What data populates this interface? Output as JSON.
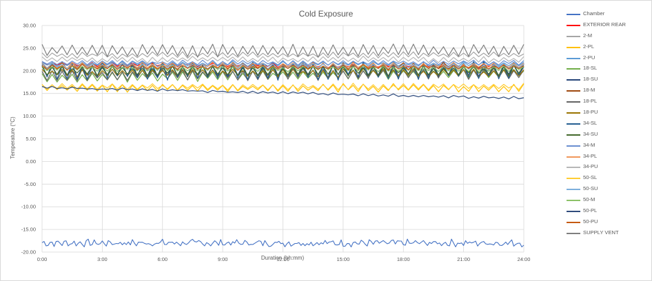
{
  "chart_data": {
    "type": "line",
    "title": "Cold Exposure",
    "xlabel": "Duration (hh:mm)",
    "ylabel": "Temperature (°C)",
    "xlim": [
      0,
      24
    ],
    "ylim": [
      -20,
      30
    ],
    "yticks": [
      "30.00",
      "25.00",
      "20.00",
      "15.00",
      "10.00",
      "5.00",
      "0.00",
      "-5.00",
      "-10.00",
      "-15.00",
      "-20.00"
    ],
    "xticks": [
      "0:00",
      "3:00",
      "6:00",
      "9:00",
      "12:00",
      "15:00",
      "18:00",
      "21:00",
      "24:00"
    ],
    "grid": true,
    "legend_position": "right",
    "series": [
      {
        "name": "Chamber",
        "color": "#4472C4",
        "base": -18.0,
        "amp": 0.6,
        "trend": 0.0
      },
      {
        "name": "EXTERIOR REAR",
        "color": "#FF0000",
        "base": 21.5,
        "amp": 0.4,
        "trend": -0.5
      },
      {
        "name": "2-M",
        "color": "#A5A5A5",
        "base": 23.5,
        "amp": 0.6,
        "trend": 0.0
      },
      {
        "name": "2-PL",
        "color": "#FFC000",
        "base": 16.2,
        "amp": 0.8,
        "trend": 0.0
      },
      {
        "name": "2-PU",
        "color": "#5B9BD5",
        "base": 21.5,
        "amp": 0.5,
        "trend": 0.0
      },
      {
        "name": "18-SL",
        "color": "#70AD47",
        "base": 18.5,
        "amp": 1.0,
        "trend": 1.0
      },
      {
        "name": "18-SU",
        "color": "#264478",
        "base": 20.0,
        "amp": 1.5,
        "trend": 0.0
      },
      {
        "name": "18-M",
        "color": "#9E480E",
        "base": 21.0,
        "amp": 0.8,
        "trend": 0.0
      },
      {
        "name": "18-PL",
        "color": "#636363",
        "base": 19.0,
        "amp": 1.2,
        "trend": 0.5
      },
      {
        "name": "18-PU",
        "color": "#997300",
        "base": 19.5,
        "amp": 0.8,
        "trend": 0.0
      },
      {
        "name": "34-SL",
        "color": "#255E91",
        "base": 20.0,
        "amp": 1.8,
        "trend": 0.0
      },
      {
        "name": "34-SU",
        "color": "#43682B",
        "base": 20.0,
        "amp": 1.0,
        "trend": 0.0
      },
      {
        "name": "34-M",
        "color": "#698ED0",
        "base": 21.8,
        "amp": 0.5,
        "trend": 0.0
      },
      {
        "name": "34-PL",
        "color": "#F1975A",
        "base": 21.2,
        "amp": 0.6,
        "trend": 0.0
      },
      {
        "name": "34-PU",
        "color": "#B7B7B7",
        "base": 22.5,
        "amp": 0.6,
        "trend": 0.0
      },
      {
        "name": "50-SL",
        "color": "#FFCD33",
        "base": 16.5,
        "amp": 0.6,
        "trend": 0.0
      },
      {
        "name": "50-SU",
        "color": "#7CAFDD",
        "base": 21.0,
        "amp": 0.6,
        "trend": 0.0
      },
      {
        "name": "50-M",
        "color": "#8CC168",
        "base": 20.5,
        "amp": 0.6,
        "trend": 0.0
      },
      {
        "name": "50-PL",
        "color": "#2F4B7C",
        "base": 16.3,
        "amp": 0.2,
        "trend": -2.3
      },
      {
        "name": "50-PU",
        "color": "#C55A11",
        "base": 20.8,
        "amp": 0.5,
        "trend": 0.0
      },
      {
        "name": "SUPPLY VENT",
        "color": "#7F7F7F",
        "base": 24.5,
        "amp": 1.3,
        "trend": 0.0
      }
    ]
  }
}
